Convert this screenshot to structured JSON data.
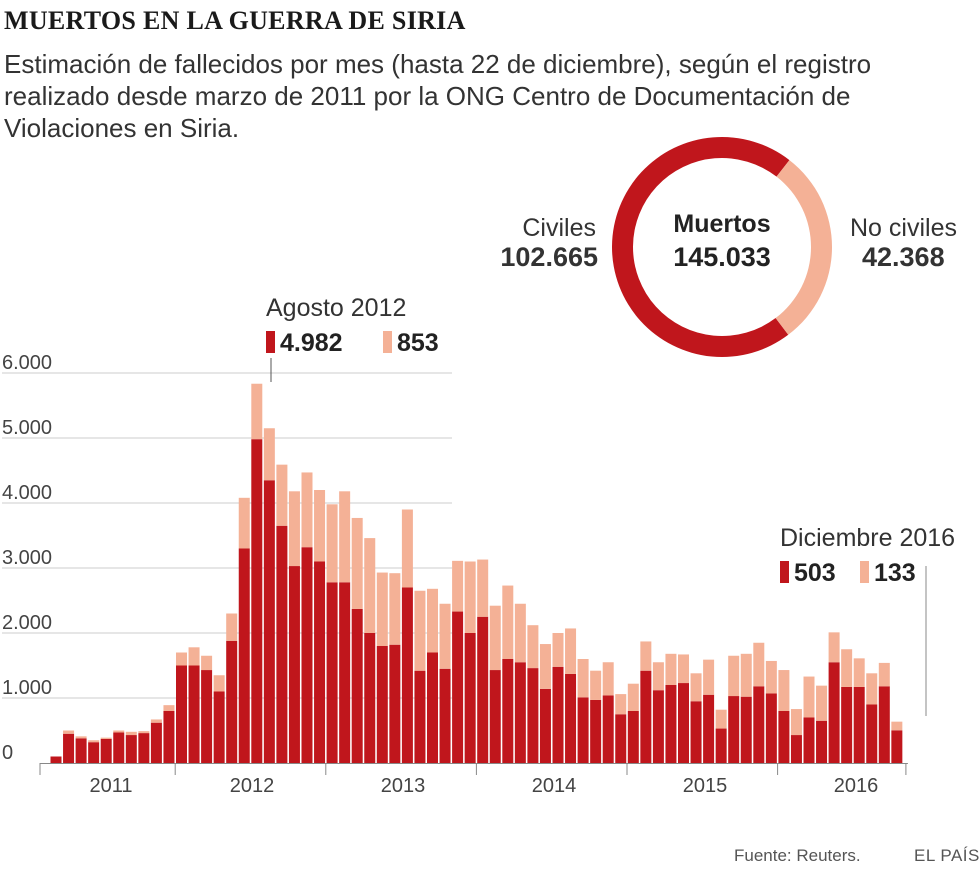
{
  "title": "MUERTOS EN LA GUERRA DE SIRIA",
  "subtitle": "Estimación de fallecidos por mes (hasta 22 de diciembre), según el registro realizado desde marzo de 2011 por la ONG Centro de Documentación de Violaciones en Siria.",
  "colors": {
    "civiles": "#c0161c",
    "no_civiles": "#f4b196",
    "axis": "#888888",
    "grid": "#cccccc"
  },
  "donut": {
    "center_label": "Muertos",
    "center_value": "145.033",
    "civiles_label": "Civiles",
    "civiles_value": "102.665",
    "no_civiles_label": "No civiles",
    "no_civiles_value": "42.368",
    "civiles": 102665,
    "no_civiles": 42368
  },
  "annotations": {
    "peak_label": "Agosto 2012",
    "peak_civ": "4.982",
    "peak_non": "853",
    "last_label": "Diciembre 2016",
    "last_civ": "503",
    "last_non": "133"
  },
  "source": "Fuente: Reuters.",
  "brand": "EL PAÍS",
  "chart_data": {
    "type": "bar",
    "stacked": true,
    "title": "MUERTOS EN LA GUERRA DE SIRIA",
    "xlabel": "",
    "ylabel": "",
    "ylim": [
      0,
      6000
    ],
    "yticks": [
      0,
      1000,
      2000,
      3000,
      4000,
      5000,
      6000
    ],
    "ytick_labels": [
      "0",
      "1.000",
      "2.000",
      "3.000",
      "4.000",
      "5.000",
      "6.000"
    ],
    "year_labels": [
      "2011",
      "2012",
      "2013",
      "2014",
      "2015",
      "2016"
    ],
    "start": "2011-03",
    "series": [
      {
        "name": "Civiles",
        "values": [
          100,
          450,
          380,
          320,
          370,
          470,
          430,
          460,
          620,
          800,
          1500,
          1500,
          1430,
          1100,
          1880,
          3300,
          4982,
          4350,
          3650,
          3030,
          3320,
          3100,
          2780,
          2780,
          2370,
          2000,
          1800,
          1820,
          2700,
          1420,
          1700,
          1450,
          2330,
          2000,
          2250,
          1430,
          1600,
          1550,
          1460,
          1140,
          1480,
          1370,
          1010,
          970,
          1040,
          750,
          800,
          1420,
          1120,
          1200,
          1230,
          950,
          1050,
          530,
          1030,
          1020,
          1180,
          1070,
          800,
          430,
          700,
          650,
          1550,
          1170,
          1170,
          900,
          1180,
          503
        ]
      },
      {
        "name": "No civiles",
        "values": [
          0,
          50,
          30,
          30,
          20,
          30,
          50,
          30,
          50,
          90,
          200,
          280,
          220,
          250,
          420,
          780,
          853,
          800,
          940,
          1150,
          1150,
          1100,
          1200,
          1400,
          1400,
          1460,
          1130,
          1100,
          1200,
          1230,
          980,
          1000,
          780,
          1100,
          880,
          990,
          1130,
          900,
          660,
          690,
          520,
          700,
          590,
          450,
          510,
          310,
          420,
          450,
          430,
          480,
          440,
          430,
          540,
          290,
          620,
          660,
          670,
          500,
          630,
          400,
          630,
          540,
          460,
          580,
          440,
          480,
          360,
          133
        ]
      }
    ]
  }
}
